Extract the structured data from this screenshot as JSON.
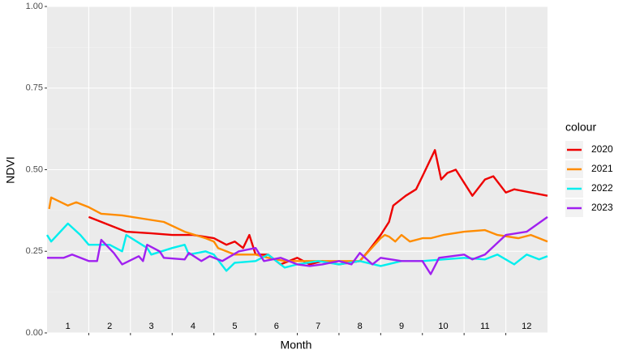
{
  "chart_data": {
    "type": "line",
    "x_label": "Month",
    "y_label": "NDVI",
    "legend_title": "colour",
    "month_labels": [
      "1",
      "2",
      "3",
      "4",
      "5",
      "6",
      "7",
      "8",
      "9",
      "10",
      "11",
      "12"
    ],
    "xlim": [
      1,
      13
    ],
    "xticks": [
      2,
      3,
      4,
      5,
      6,
      7,
      8,
      9,
      10,
      11,
      12
    ],
    "ylim": [
      0,
      1
    ],
    "yticks": [
      {
        "value": 0,
        "label": "0.00"
      },
      {
        "value": 0.25,
        "label": "0.25"
      },
      {
        "value": 0.5,
        "label": "0.50"
      },
      {
        "value": 0.75,
        "label": "0.75"
      },
      {
        "value": 1,
        "label": "1.00"
      }
    ],
    "grid": true,
    "legend_position": "right",
    "series": [
      {
        "name": "2020",
        "color": "#ee0000",
        "x": [
          2.0,
          2.5,
          2.9,
          3.5,
          4.0,
          4.5,
          5.0,
          5.3,
          5.5,
          5.7,
          5.85,
          6.0,
          6.3,
          6.6,
          7.0,
          7.3,
          7.6,
          8.0,
          8.5,
          8.7,
          9.0,
          9.2,
          9.3,
          9.6,
          9.85,
          10.0,
          10.3,
          10.45,
          10.6,
          10.8,
          11.2,
          11.5,
          11.7,
          12.0,
          12.2,
          13.0
        ],
        "values": [
          0.355,
          0.33,
          0.31,
          0.305,
          0.3,
          0.3,
          0.29,
          0.27,
          0.28,
          0.26,
          0.3,
          0.24,
          0.24,
          0.21,
          0.23,
          0.21,
          0.22,
          0.21,
          0.22,
          0.25,
          0.3,
          0.34,
          0.39,
          0.42,
          0.44,
          0.48,
          0.56,
          0.47,
          0.49,
          0.5,
          0.42,
          0.47,
          0.48,
          0.43,
          0.44,
          0.42
        ]
      },
      {
        "name": "2021",
        "color": "#ff8c00",
        "x": [
          1.05,
          1.1,
          1.5,
          1.7,
          2.0,
          2.3,
          2.8,
          3.3,
          3.8,
          4.3,
          4.8,
          5.0,
          5.1,
          5.5,
          6.0,
          6.3,
          6.7,
          7.5,
          8.5,
          9.0,
          9.1,
          9.2,
          9.35,
          9.5,
          9.7,
          10.0,
          10.2,
          10.5,
          11.0,
          11.5,
          11.8,
          12.3,
          12.6,
          12.8,
          13.0
        ],
        "values": [
          0.38,
          0.415,
          0.39,
          0.4,
          0.385,
          0.365,
          0.36,
          0.35,
          0.34,
          0.31,
          0.29,
          0.28,
          0.26,
          0.24,
          0.24,
          0.23,
          0.22,
          0.22,
          0.22,
          0.29,
          0.3,
          0.295,
          0.28,
          0.3,
          0.28,
          0.29,
          0.29,
          0.3,
          0.31,
          0.315,
          0.3,
          0.29,
          0.3,
          0.29,
          0.28
        ]
      },
      {
        "name": "2022",
        "color": "#00eeee",
        "x": [
          1.0,
          1.1,
          1.5,
          1.8,
          2.0,
          2.5,
          2.8,
          2.9,
          3.4,
          3.5,
          4.0,
          4.3,
          4.4,
          4.8,
          5.0,
          5.3,
          5.5,
          6.0,
          6.3,
          6.7,
          7.0,
          7.5,
          8.0,
          8.5,
          9.0,
          9.5,
          10.0,
          10.5,
          11.0,
          11.5,
          11.8,
          12.2,
          12.5,
          12.8,
          13.0
        ],
        "values": [
          0.3,
          0.28,
          0.335,
          0.3,
          0.27,
          0.27,
          0.25,
          0.3,
          0.26,
          0.24,
          0.26,
          0.27,
          0.24,
          0.25,
          0.24,
          0.19,
          0.215,
          0.22,
          0.24,
          0.2,
          0.21,
          0.22,
          0.21,
          0.22,
          0.205,
          0.22,
          0.22,
          0.225,
          0.23,
          0.225,
          0.24,
          0.21,
          0.24,
          0.225,
          0.235
        ]
      },
      {
        "name": "2023",
        "color": "#a020f0",
        "x": [
          1.0,
          1.4,
          1.6,
          2.0,
          2.2,
          2.3,
          2.6,
          2.8,
          3.2,
          3.3,
          3.4,
          3.7,
          3.8,
          4.3,
          4.4,
          4.7,
          4.9,
          5.2,
          5.6,
          6.0,
          6.2,
          6.6,
          7.0,
          7.3,
          7.6,
          8.0,
          8.3,
          8.5,
          8.8,
          9.0,
          9.5,
          10.0,
          10.2,
          10.4,
          11.0,
          11.2,
          11.5,
          12.0,
          12.5,
          13.0
        ],
        "values": [
          0.23,
          0.23,
          0.24,
          0.22,
          0.22,
          0.285,
          0.245,
          0.21,
          0.235,
          0.22,
          0.27,
          0.25,
          0.23,
          0.225,
          0.245,
          0.22,
          0.235,
          0.22,
          0.25,
          0.26,
          0.22,
          0.23,
          0.21,
          0.205,
          0.21,
          0.22,
          0.21,
          0.245,
          0.21,
          0.23,
          0.22,
          0.22,
          0.18,
          0.23,
          0.24,
          0.225,
          0.24,
          0.3,
          0.31,
          0.355
        ]
      }
    ]
  }
}
